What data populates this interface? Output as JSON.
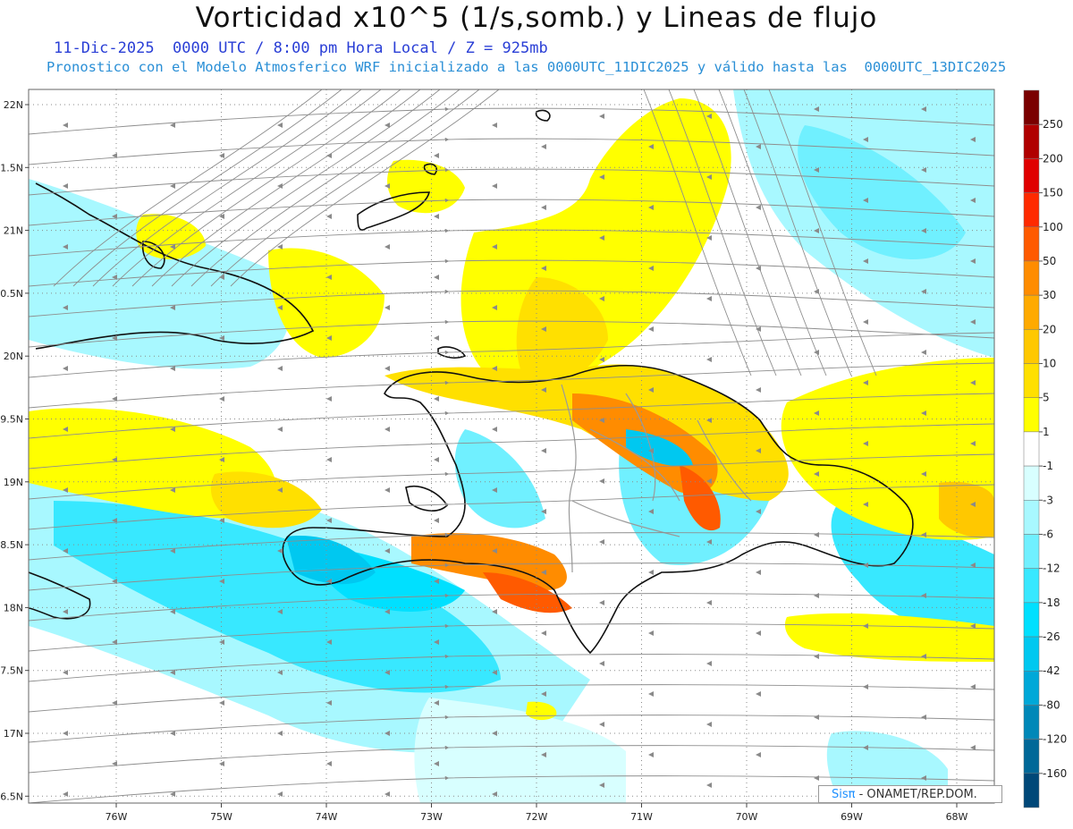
{
  "title": "Vorticidad x10^5 (1/s,somb.) y Lineas de flujo",
  "subtitle_line1": "11-Dic-2025  0000 UTC / 8:00 pm Hora Local / Z = 925mb",
  "subtitle_line2": "Pronostico con el Modelo Atmosferico WRF inicializado a las 0000UTC_11DIC2025 y válido hasta las  0000UTC_13DIC2025",
  "lat_ticks": [
    "22N",
    "1.5N",
    "21N",
    "0.5N",
    "20N",
    "9.5N",
    "19N",
    "8.5N",
    "18N",
    "7.5N",
    "17N",
    "6.5N"
  ],
  "lon_ticks": [
    "76W",
    "75W",
    "74W",
    "73W",
    "72W",
    "71W",
    "70W",
    "69W",
    "68W"
  ],
  "colorbar": {
    "labels": [
      "250",
      "200",
      "150",
      "100",
      "50",
      "30",
      "20",
      "10",
      "5",
      "1",
      "-1",
      "-3",
      "-6",
      "-12",
      "-18",
      "-26",
      "-42",
      "-80",
      "-120",
      "-160"
    ],
    "colors": [
      "#7a0000",
      "#b00000",
      "#e00000",
      "#ff2a00",
      "#ff5a00",
      "#ff8c00",
      "#ffaa00",
      "#ffc800",
      "#ffe000",
      "#ffff00",
      "#ffffff",
      "#d8ffff",
      "#a8f8ff",
      "#70f0ff",
      "#38e8ff",
      "#00e0ff",
      "#00c8f0",
      "#00a8d8",
      "#0088b8",
      "#006898",
      "#004878"
    ]
  },
  "credit": {
    "brand": "Sisπ",
    "text": "- ONAMET/REP.DOM."
  }
}
